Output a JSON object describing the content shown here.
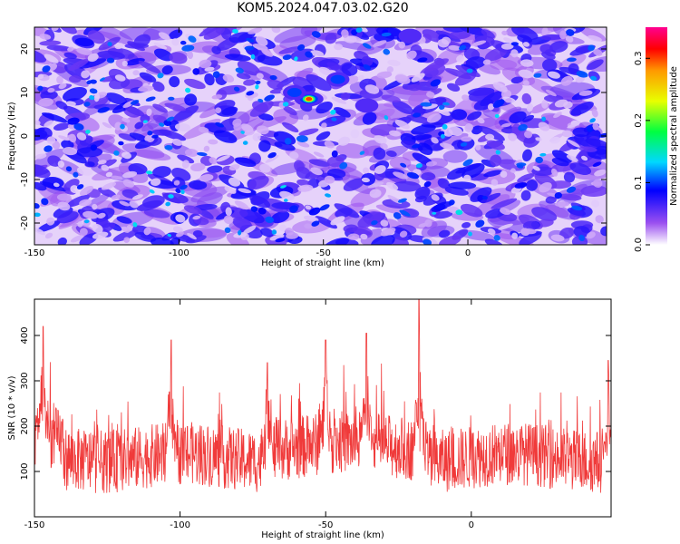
{
  "title": "KOM5.2024.047.03.02.G20",
  "chart_data": [
    {
      "type": "heatmap",
      "xlabel": "Height of straight line (km)",
      "ylabel": "Frequency (Hz)",
      "xlim": [
        -150,
        48
      ],
      "ylim": [
        -25,
        25
      ],
      "x_ticks": [
        "-150",
        "-100",
        "-50",
        "0"
      ],
      "y_ticks": [
        "-20",
        "-10",
        "0",
        "10",
        "20"
      ],
      "colorbar": {
        "label": "Normalized spectral amplitude",
        "range": [
          0.0,
          0.35
        ],
        "ticks": [
          "0.0",
          "0.1",
          "0.2",
          "0.3"
        ]
      },
      "hotspots": [
        {
          "x": -55,
          "y": 8.5,
          "value": 0.33
        },
        {
          "x": -45,
          "y": 13,
          "value": 0.12
        },
        {
          "x": -60,
          "y": 10,
          "value": 0.11
        },
        {
          "x": -35,
          "y": 7,
          "value": 0.09
        },
        {
          "x": -20,
          "y": 23,
          "value": 0.08
        }
      ]
    },
    {
      "type": "line",
      "xlabel": "Height of straight line (km)",
      "ylabel": "SNR (10 * v/v)",
      "xlim": [
        -150,
        48
      ],
      "ylim": [
        0,
        480
      ],
      "x_ticks": [
        "-150",
        "-100",
        "-50",
        "0"
      ],
      "y_ticks": [
        "100",
        "200",
        "300",
        "400"
      ],
      "color": "#f03a3a",
      "peaks": [
        {
          "x": -147,
          "y": 420
        },
        {
          "x": -103,
          "y": 390
        },
        {
          "x": -70,
          "y": 340
        },
        {
          "x": -50,
          "y": 390
        },
        {
          "x": -36,
          "y": 405
        },
        {
          "x": -18,
          "y": 480
        },
        {
          "x": 47,
          "y": 345
        }
      ]
    }
  ]
}
